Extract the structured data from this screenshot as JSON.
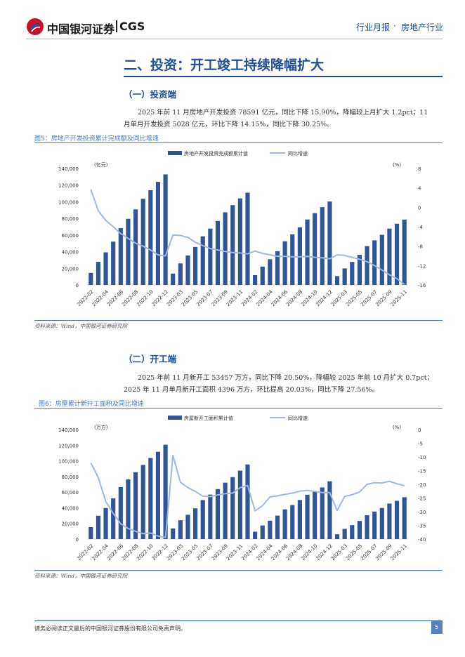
{
  "header": {
    "company": "中国银河证券",
    "brand": "CGS",
    "report_type": "行业月报",
    "dot": "·",
    "industry": "房地产行业"
  },
  "section": {
    "title": "二、投资：开工竣工持续降幅扩大",
    "sub1": "（一）投资端",
    "para1_line1": "2025 年前 11 月房地产开发投资 78591 亿元，同比下降 15.90%，降幅较上月扩大 1.2pct；11",
    "para1_line2": "月单月开发投资 5028 亿元，环比下降 14.15%，同比下降 30.25%。",
    "sub2": "（二）开工端",
    "para2_line1": "2025 年前 11 月新开工 53457 万方，同比下降 20.50%，降幅较 2025 年前 10 月扩大 0.7pct；",
    "para2_line2": "2025 年 11 月单月新开工面积 4396 万方，环比提高 20.03%，同比下降 27.56%。"
  },
  "figures": {
    "fig5_caption": "图5：房地产开发投资累计完成额及同比增速",
    "fig5_source": "资料来源：Wind，中国银河证券研究院",
    "fig6_caption": "图6：房屋累计新开工面积及同比增速",
    "fig6_source": "资料来源：Wind，中国银河证券研究院"
  },
  "footer": {
    "disclaimer": "请务必阅读正文最后的中国银河证券股份有限公司免责声明。",
    "page": "5"
  },
  "colors": {
    "bar": "#2f5597",
    "line": "#9fb9e0",
    "accent": "#1f4e96",
    "logo_red": "#c8102e"
  },
  "chart_data": [
    {
      "type": "bar",
      "categories": [
        "2022-02",
        "2022-03",
        "2022-04",
        "2022-05",
        "2022-06",
        "2022-07",
        "2022-08",
        "2022-09",
        "2022-10",
        "2022-11",
        "2022-12",
        "2023-02",
        "2023-03",
        "2023-04",
        "2023-05",
        "2023-06",
        "2023-07",
        "2023-08",
        "2023-09",
        "2023-10",
        "2023-11",
        "2023-12",
        "2024-02",
        "2024-03",
        "2024-04",
        "2024-05",
        "2024-06",
        "2024-07",
        "2024-08",
        "2024-09",
        "2024-10",
        "2024-11",
        "2024-12",
        "2025-02",
        "2025-03",
        "2025-04",
        "2025-05",
        "2025-06",
        "2025-07",
        "2025-08",
        "2025-09",
        "2025-10",
        "2025-11"
      ],
      "tick_labels": [
        "2022-02",
        "2022-04",
        "2022-06",
        "2022-08",
        "2022-10",
        "2022-12",
        "2023-03",
        "2023-05",
        "2023-07",
        "2023-09",
        "2023-11",
        "2024-02",
        "2024-04",
        "2024-06",
        "2024-08",
        "2024-10",
        "2024-12",
        "2025-03",
        "2025-05",
        "2025-07",
        "2025-09",
        "2025-11"
      ],
      "series": [
        {
          "name": "房地产开发投资完成额累计值",
          "axis": "left",
          "kind": "bar",
          "values": [
            14500,
            27800,
            39200,
            52100,
            68300,
            79500,
            90800,
            103600,
            113900,
            123900,
            132900,
            13700,
            25900,
            35500,
            45700,
            58500,
            67700,
            76900,
            87300,
            95900,
            104000,
            110900,
            11800,
            22100,
            30900,
            40600,
            52500,
            60900,
            69300,
            78700,
            86300,
            93500,
            100300,
            10700,
            19900,
            27700,
            36200,
            46700,
            53600,
            60300,
            67700,
            73600,
            78600
          ]
        },
        {
          "name": "同比增速",
          "axis": "right",
          "kind": "line",
          "values": [
            3.7,
            -0.7,
            -2.7,
            -4.0,
            -5.4,
            -6.4,
            -7.4,
            -8.0,
            -8.8,
            -9.8,
            -10.0,
            -5.7,
            -5.8,
            -6.2,
            -7.2,
            -7.9,
            -8.5,
            -8.8,
            -9.1,
            -9.3,
            -9.4,
            -9.6,
            -9.0,
            -9.5,
            -9.8,
            -10.1,
            -10.1,
            -10.2,
            -10.2,
            -10.1,
            -10.3,
            -10.4,
            -10.6,
            -9.8,
            -9.9,
            -10.3,
            -10.7,
            -11.2,
            -12.0,
            -12.9,
            -13.9,
            -14.7,
            -15.9
          ]
        }
      ],
      "ylabel_left": "(亿元)",
      "ylabel_right": "(%)",
      "ylim_left": [
        0,
        140000
      ],
      "ylim_right": [
        -16,
        8
      ],
      "yticks_left": [
        "140,000",
        "120,000",
        "100,000",
        "80,000",
        "60,000",
        "40,000",
        "20,000",
        "0"
      ],
      "yticks_right": [
        "8",
        "4",
        "0",
        "-4",
        "-8",
        "-12",
        "-16"
      ],
      "legend": "top-center",
      "grid": false
    },
    {
      "type": "bar",
      "categories": [
        "2022-02",
        "2022-03",
        "2022-04",
        "2022-05",
        "2022-06",
        "2022-07",
        "2022-08",
        "2022-09",
        "2022-10",
        "2022-11",
        "2022-12",
        "2023-02",
        "2023-03",
        "2023-04",
        "2023-05",
        "2023-06",
        "2023-07",
        "2023-08",
        "2023-09",
        "2023-10",
        "2023-11",
        "2023-12",
        "2024-02",
        "2024-03",
        "2024-04",
        "2024-05",
        "2024-06",
        "2024-07",
        "2024-08",
        "2024-09",
        "2024-10",
        "2024-11",
        "2024-12",
        "2025-02",
        "2025-03",
        "2025-04",
        "2025-05",
        "2025-06",
        "2025-07",
        "2025-08",
        "2025-09",
        "2025-10",
        "2025-11"
      ],
      "tick_labels": [
        "2022-02",
        "2022-04",
        "2022-06",
        "2022-08",
        "2022-10",
        "2022-12",
        "2023-03",
        "2023-05",
        "2023-07",
        "2023-09",
        "2023-11",
        "2024-02",
        "2024-04",
        "2024-06",
        "2024-08",
        "2024-10",
        "2024-12",
        "2025-03",
        "2025-05",
        "2025-07",
        "2025-09",
        "2025-11"
      ],
      "series": [
        {
          "name": "房屋新开工面积累计值",
          "axis": "left",
          "kind": "bar",
          "values": [
            15300,
            29800,
            39700,
            52000,
            66400,
            76300,
            85600,
            94800,
            103700,
            111600,
            120600,
            13600,
            24100,
            31100,
            39300,
            49900,
            56900,
            63900,
            72100,
            79200,
            87500,
            95400,
            9400,
            17400,
            23500,
            30000,
            38000,
            43500,
            49900,
            56700,
            61200,
            66000,
            73900,
            6100,
            13000,
            17800,
            23200,
            30400,
            35200,
            39800,
            45400,
            48900,
            53500
          ]
        },
        {
          "name": "同比增速",
          "axis": "right",
          "kind": "line",
          "values": [
            -12.2,
            -17.5,
            -26.3,
            -30.6,
            -34.4,
            -36.1,
            -37.2,
            -38.0,
            -37.8,
            -38.9,
            -39.4,
            -9.4,
            -19.2,
            -21.2,
            -22.6,
            -24.3,
            -24.5,
            -23.9,
            -23.4,
            -23.2,
            -21.2,
            -20.4,
            -29.7,
            -27.8,
            -24.6,
            -24.2,
            -23.7,
            -23.2,
            -22.5,
            -22.2,
            -22.6,
            -23.0,
            -23.0,
            -29.6,
            -24.4,
            -23.8,
            -22.8,
            -20.0,
            -19.4,
            -19.5,
            -18.9,
            -19.8,
            -20.5
          ]
        }
      ],
      "ylabel_left": "(万方)",
      "ylabel_right": "(%)",
      "ylim_left": [
        0,
        140000
      ],
      "ylim_right": [
        -40,
        0
      ],
      "yticks_left": [
        "140,000",
        "120,000",
        "100,000",
        "80,000",
        "60,000",
        "40,000",
        "20,000",
        "0"
      ],
      "yticks_right": [
        "0",
        "-5",
        "-10",
        "-15",
        "-20",
        "-25",
        "-30",
        "-35",
        "-40"
      ],
      "legend": "top-center",
      "grid": false
    }
  ]
}
